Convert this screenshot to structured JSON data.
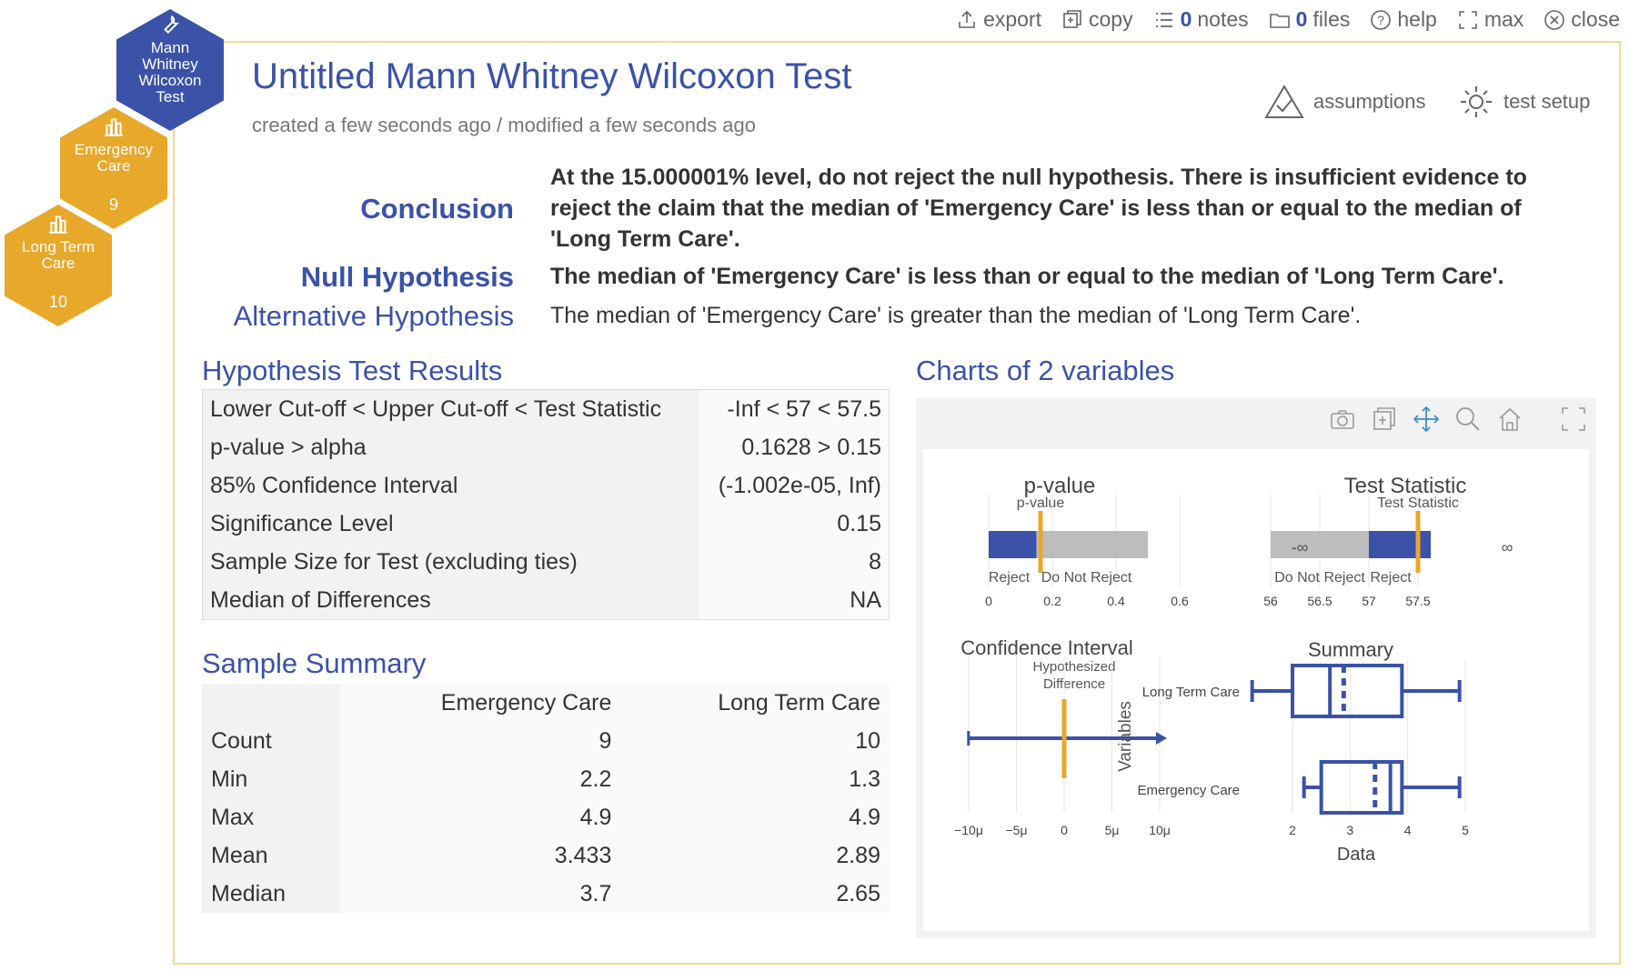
{
  "topbar": {
    "export": "export",
    "copy": "copy",
    "notes_count": "0",
    "notes": "notes",
    "files_count": "0",
    "files": "files",
    "help": "help",
    "max": "max",
    "close": "close"
  },
  "hexes": [
    {
      "label": "Mann Whitney Wilcoxon Test",
      "icon": "wrench-icon",
      "color": "#3a52a8"
    },
    {
      "label": "Emergency Care",
      "count": "9",
      "icon": "bar-chart-icon",
      "color": "#e8a82a"
    },
    {
      "label": "Long Term Care",
      "count": "10",
      "icon": "bar-chart-icon",
      "color": "#e8a82a"
    }
  ],
  "header": {
    "title": "Untitled Mann Whitney Wilcoxon Test",
    "subtitle": "created a few seconds ago / modified a few seconds ago",
    "assumptions": "assumptions",
    "test_setup": "test setup"
  },
  "conclusion": {
    "label": "Conclusion",
    "text": "At the 15.000001% level, do not reject the null hypothesis. There is insufficient evidence to reject the claim that the median of 'Emergency Care' is less than or equal to the median of 'Long Term Care'."
  },
  "null_hypothesis": {
    "label": "Null Hypothesis",
    "text": "The median of 'Emergency Care' is less than or equal to the median of 'Long Term Care'."
  },
  "alt_hypothesis": {
    "label": "Alternative Hypothesis",
    "text": "The median of 'Emergency Care' is greater than the median of 'Long Term Care'."
  },
  "results": {
    "title": "Hypothesis Test Results",
    "rows": [
      {
        "label": "Lower Cut-off < Upper Cut-off < Test Statistic",
        "value": "-Inf < 57 < 57.5"
      },
      {
        "label": "p-value > alpha",
        "value": "0.1628 > 0.15"
      },
      {
        "label": "85% Confidence Interval",
        "value": "(-1.002e-05, Inf)"
      },
      {
        "label": "Significance Level",
        "value": "0.15"
      },
      {
        "label": "Sample Size for Test (excluding ties)",
        "value": "8"
      },
      {
        "label": "Median of Differences",
        "value": "NA"
      }
    ]
  },
  "summary": {
    "title": "Sample Summary",
    "columns": [
      "Emergency Care",
      "Long Term Care"
    ],
    "rows": [
      {
        "label": "Count",
        "values": [
          "9",
          "10"
        ]
      },
      {
        "label": "Min",
        "values": [
          "2.2",
          "1.3"
        ]
      },
      {
        "label": "Max",
        "values": [
          "4.9",
          "4.9"
        ]
      },
      {
        "label": "Mean",
        "values": [
          "3.433",
          "2.89"
        ]
      },
      {
        "label": "Median",
        "values": [
          "3.7",
          "2.65"
        ]
      }
    ]
  },
  "charts_title": "Charts of 2 variables",
  "colors": {
    "accent": "#3a52a8",
    "orange": "#e8a82a",
    "grey": "#bdbdbd"
  },
  "chart_data": [
    {
      "type": "bar",
      "title": "p-value",
      "marker_label": "p-value",
      "value": 0.1628,
      "alpha": 0.15,
      "xlim": [
        0,
        0.6
      ],
      "ticks": [
        "0",
        "0.2",
        "0.4",
        "0.6"
      ],
      "regions": [
        "Reject",
        "Do Not Reject"
      ]
    },
    {
      "type": "bar",
      "title": "Test Statistic",
      "marker_label": "Test Statistic",
      "value": 57.5,
      "cutoff": 57,
      "xlim": [
        56,
        57.5
      ],
      "ticks": [
        "56",
        "56.5",
        "57",
        "57.5"
      ],
      "ends": [
        "-∞",
        "∞"
      ],
      "regions": [
        "Do Not Reject",
        "Reject"
      ]
    },
    {
      "type": "line",
      "title": "Confidence Interval",
      "marker_label": "Hypothesized Difference",
      "lower": -1.002e-05,
      "upper": "Inf",
      "hypothesized": 0,
      "ticks": [
        "−10μ",
        "−5μ",
        "0",
        "5μ",
        "10μ"
      ]
    },
    {
      "type": "box",
      "title": "Summary",
      "xlabel": "Data",
      "ylabel": "Variables",
      "ticks": [
        "2",
        "3",
        "4",
        "5"
      ],
      "series": [
        {
          "name": "Long Term Care",
          "min": 1.3,
          "q1": 2.0,
          "median": 2.65,
          "mean": 2.89,
          "q3": 3.9,
          "max": 4.9
        },
        {
          "name": "Emergency Care",
          "min": 2.2,
          "q1": 2.5,
          "median": 3.7,
          "mean": 3.433,
          "q3": 3.9,
          "max": 4.9
        }
      ]
    }
  ]
}
